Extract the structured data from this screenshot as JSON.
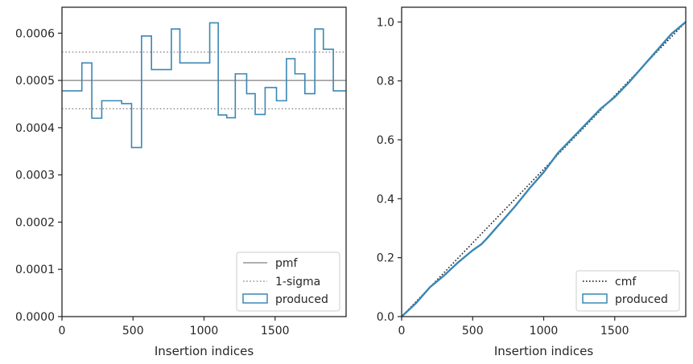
{
  "chart_data": [
    {
      "type": "histogram-step",
      "xlabel": "Insertion indices",
      "ylabel": "",
      "xlim": [
        0,
        2000
      ],
      "ylim": [
        0,
        0.000655
      ],
      "xticks": [
        0,
        500,
        1000,
        1500
      ],
      "xtick_labels": [
        "0",
        "500",
        "1000",
        "1500"
      ],
      "yticks": [
        0,
        0.0001,
        0.0002,
        0.0003,
        0.0004,
        0.0005,
        0.0006
      ],
      "ytick_labels": [
        "0.0000",
        "0.0001",
        "0.0002",
        "0.0003",
        "0.0004",
        "0.0005",
        "0.0006"
      ],
      "bin_edges": [
        0,
        140,
        210,
        280,
        350,
        420,
        490,
        560,
        630,
        770,
        830,
        1040,
        1100,
        1160,
        1220,
        1300,
        1360,
        1430,
        1510,
        1580,
        1640,
        1710,
        1780,
        1840,
        1910,
        2000
      ],
      "series": [
        {
          "name": "produced",
          "values": [
            0.000478,
            0.000537,
            0.00042,
            0.000457,
            0.000457,
            0.000451,
            0.000358,
            0.000594,
            0.000523,
            0.000609,
            0.000537,
            0.000622,
            0.000427,
            0.000421,
            0.000514,
            0.000472,
            0.000428,
            0.000485,
            0.000457,
            0.000546,
            0.000514,
            0.000472,
            0.000609,
            0.000566,
            0.000478
          ]
        }
      ],
      "reference_lines": [
        {
          "name": "pmf",
          "y": 0.0005
        },
        {
          "name": "1-sigma",
          "y": [
            0.00044,
            0.00056
          ]
        }
      ],
      "legend": [
        "pmf",
        "1-sigma",
        "produced"
      ],
      "legend_position": "lower right",
      "grid": false
    },
    {
      "type": "line",
      "xlabel": "Insertion indices",
      "ylabel": "",
      "xlim": [
        0,
        2000
      ],
      "ylim": [
        0,
        1.05
      ],
      "xticks": [
        0,
        500,
        1000,
        1500
      ],
      "xtick_labels": [
        "0",
        "500",
        "1000",
        "1500"
      ],
      "yticks": [
        0,
        0.2,
        0.4,
        0.6,
        0.8,
        1.0
      ],
      "ytick_labels": [
        "0.0",
        "0.2",
        "0.4",
        "0.6",
        "0.8",
        "1.0"
      ],
      "series": [
        {
          "name": "cmf",
          "x": [
            0,
            2000
          ],
          "values": [
            0,
            1.0
          ]
        },
        {
          "name": "produced",
          "x": [
            0,
            100,
            200,
            300,
            400,
            500,
            560,
            600,
            700,
            800,
            900,
            1000,
            1100,
            1200,
            1300,
            1400,
            1500,
            1600,
            1700,
            1800,
            1900,
            2000
          ],
          "values": [
            0,
            0.045,
            0.1,
            0.14,
            0.185,
            0.225,
            0.245,
            0.265,
            0.32,
            0.375,
            0.435,
            0.49,
            0.555,
            0.605,
            0.655,
            0.705,
            0.745,
            0.795,
            0.85,
            0.905,
            0.96,
            1.0
          ]
        }
      ],
      "legend": [
        "cmf",
        "produced"
      ],
      "legend_position": "lower right",
      "grid": false
    }
  ],
  "colors": {
    "produced": "#3a87b5",
    "pmf": "#808080",
    "sigma": "#808080",
    "cmf": "#111111",
    "axes": "#262626"
  }
}
